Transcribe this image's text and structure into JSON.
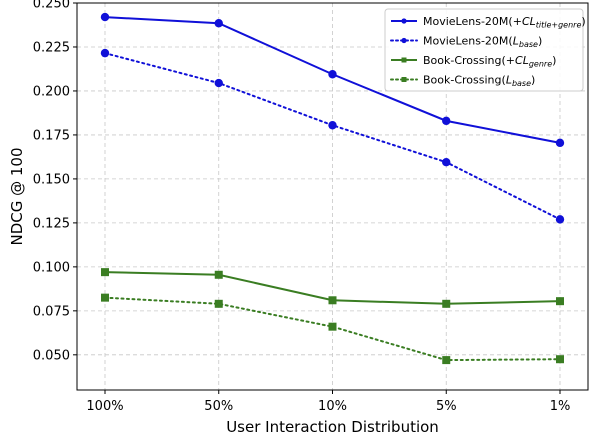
{
  "chart_data": {
    "type": "line",
    "categories": [
      "100%",
      "50%",
      "10%",
      "5%",
      "1%"
    ],
    "xlabel": "User Interaction Distribution",
    "ylabel": "NDCG @ 100",
    "ylim": [
      0.03,
      0.25
    ],
    "yticks": [
      "0.050",
      "0.075",
      "0.100",
      "0.125",
      "0.150",
      "0.175",
      "0.200",
      "0.225",
      "0.250"
    ],
    "grid": true,
    "legend_position": "top-right",
    "series": [
      {
        "name": "MovieLens-20M(+CL_title+genre)",
        "legend_main": "MovieLens-20M(+",
        "legend_cl": "CL",
        "legend_sub": "title+genre",
        "legend_close": ")",
        "values": [
          0.242,
          0.2385,
          0.2095,
          0.183,
          0.1705
        ],
        "color": "#1010d8",
        "dash": "solid",
        "marker": "circle"
      },
      {
        "name": "MovieLens-20M(L_base)",
        "legend_main": "MovieLens-20M(",
        "legend_cl": "L",
        "legend_sub": "base",
        "legend_close": ")",
        "values": [
          0.2215,
          0.2045,
          0.1805,
          0.1595,
          0.127
        ],
        "color": "#1010d8",
        "dash": "dotted",
        "marker": "circle"
      },
      {
        "name": "Book-Crossing(+CL_genre)",
        "legend_main": "Book-Crossing(+",
        "legend_cl": "CL",
        "legend_sub": "genre",
        "legend_close": ")",
        "values": [
          0.097,
          0.0955,
          0.081,
          0.079,
          0.0805
        ],
        "color": "#3a7d22",
        "dash": "solid",
        "marker": "square"
      },
      {
        "name": "Book-Crossing(L_base)",
        "legend_main": "Book-Crossing(",
        "legend_cl": "L",
        "legend_sub": "base",
        "legend_close": ")",
        "values": [
          0.0825,
          0.079,
          0.066,
          0.047,
          0.0475
        ],
        "color": "#3a7d22",
        "dash": "dotted",
        "marker": "square"
      }
    ]
  }
}
